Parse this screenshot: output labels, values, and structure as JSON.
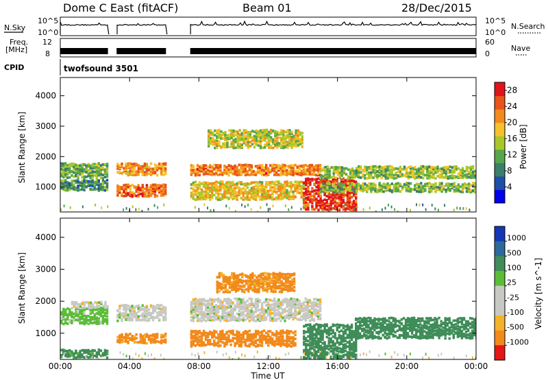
{
  "header": {
    "station": "Dome C East (fitACF)",
    "beam": "Beam 01",
    "date": "28/Dec/2015"
  },
  "summary_panels": {
    "nsky": {
      "label": "N.Sky",
      "ticks_left": [
        "10^5",
        "10^0"
      ],
      "right_label": "N.Search",
      "ticks_right": [
        "10^5",
        "10^0"
      ]
    },
    "freq": {
      "label_line1": "Freq.",
      "label_line2": "[MHz]",
      "ticks_left": [
        "12",
        "8"
      ],
      "right_label": "Nave",
      "ticks_right": [
        "60",
        "0"
      ]
    },
    "cpid": {
      "label": "CPID",
      "value": "twofsound 3501"
    }
  },
  "chart_data": [
    {
      "type": "heatmap",
      "title": "",
      "xlabel": "Time UT",
      "ylabel": "Slant Range [km]",
      "x_ticks": [
        "00:00",
        "04:00",
        "08:00",
        "12:00",
        "16:00",
        "20:00",
        "00:00"
      ],
      "xlim_hours": [
        0,
        24
      ],
      "ylim_km": [
        180,
        4600
      ],
      "y_ticks": [
        1000,
        2000,
        3000,
        4000
      ],
      "colorbar": {
        "label": "Power [dB]",
        "range": [
          0,
          30
        ],
        "ticks": [
          4,
          8,
          12,
          16,
          20,
          24,
          28
        ]
      },
      "data_gaps_hours": [
        [
          2.75,
          3.25
        ],
        [
          6.1,
          7.5
        ]
      ],
      "echo_bands": [
        {
          "t0": 0.0,
          "t1": 2.75,
          "r0": 1300,
          "r1": 1800,
          "db": 12
        },
        {
          "t0": 0.0,
          "t1": 2.75,
          "r0": 900,
          "r1": 1250,
          "db": 10
        },
        {
          "t0": 3.25,
          "t1": 6.1,
          "r0": 1400,
          "r1": 1800,
          "db": 21
        },
        {
          "t0": 3.25,
          "t1": 6.1,
          "r0": 700,
          "r1": 1100,
          "db": 24
        },
        {
          "t0": 7.5,
          "t1": 15.0,
          "r0": 1400,
          "r1": 1750,
          "db": 22
        },
        {
          "t0": 7.5,
          "t1": 14.0,
          "r0": 600,
          "r1": 1200,
          "db": 18
        },
        {
          "t0": 8.5,
          "t1": 14.0,
          "r0": 2300,
          "r1": 2900,
          "db": 16
        },
        {
          "t0": 14.0,
          "t1": 17.0,
          "r0": 250,
          "r1": 1300,
          "db": 27
        },
        {
          "t0": 15.0,
          "t1": 24.0,
          "r0": 1300,
          "r1": 1700,
          "db": 14
        },
        {
          "t0": 15.0,
          "t1": 24.0,
          "r0": 850,
          "r1": 1150,
          "db": 13
        }
      ]
    },
    {
      "type": "heatmap",
      "title": "",
      "xlabel": "Time UT",
      "ylabel": "Slant Range [km]",
      "x_ticks": [
        "00:00",
        "04:00",
        "08:00",
        "12:00",
        "16:00",
        "20:00",
        "00:00"
      ],
      "xlim_hours": [
        0,
        24
      ],
      "ylim_km": [
        180,
        4600
      ],
      "y_ticks": [
        1000,
        2000,
        3000,
        4000
      ],
      "colorbar": {
        "label": "Velocity [m s^-1]",
        "ticks": [
          "1000",
          "500",
          "100",
          "25",
          "-25",
          "-100",
          "-500",
          "-1000"
        ]
      },
      "data_gaps_hours": [
        [
          2.75,
          3.25
        ],
        [
          6.1,
          7.5
        ]
      ],
      "echo_bands": [
        {
          "t0": 0.0,
          "t1": 2.75,
          "r0": 1300,
          "r1": 1800,
          "vel": 50
        },
        {
          "t0": 0.0,
          "t1": 2.75,
          "r0": 250,
          "r1": 500,
          "vel": 150
        },
        {
          "t0": 0.5,
          "t1": 2.75,
          "r0": 1800,
          "r1": 2000,
          "vel": 0
        },
        {
          "t0": 3.25,
          "t1": 6.1,
          "r0": 1400,
          "r1": 1900,
          "vel": 0
        },
        {
          "t0": 3.25,
          "t1": 6.1,
          "r0": 700,
          "r1": 1000,
          "vel": -150
        },
        {
          "t0": 7.5,
          "t1": 15.0,
          "r0": 1400,
          "r1": 2100,
          "vel": 0
        },
        {
          "t0": 7.5,
          "t1": 13.5,
          "r0": 600,
          "r1": 1100,
          "vel": -300
        },
        {
          "t0": 9.0,
          "t1": 13.5,
          "r0": 2300,
          "r1": 2900,
          "vel": -150
        },
        {
          "t0": 14.0,
          "t1": 17.0,
          "r0": 200,
          "r1": 1300,
          "vel": 200
        },
        {
          "t0": 17.0,
          "t1": 24.0,
          "r0": 850,
          "r1": 1500,
          "vel": 300
        }
      ]
    }
  ]
}
